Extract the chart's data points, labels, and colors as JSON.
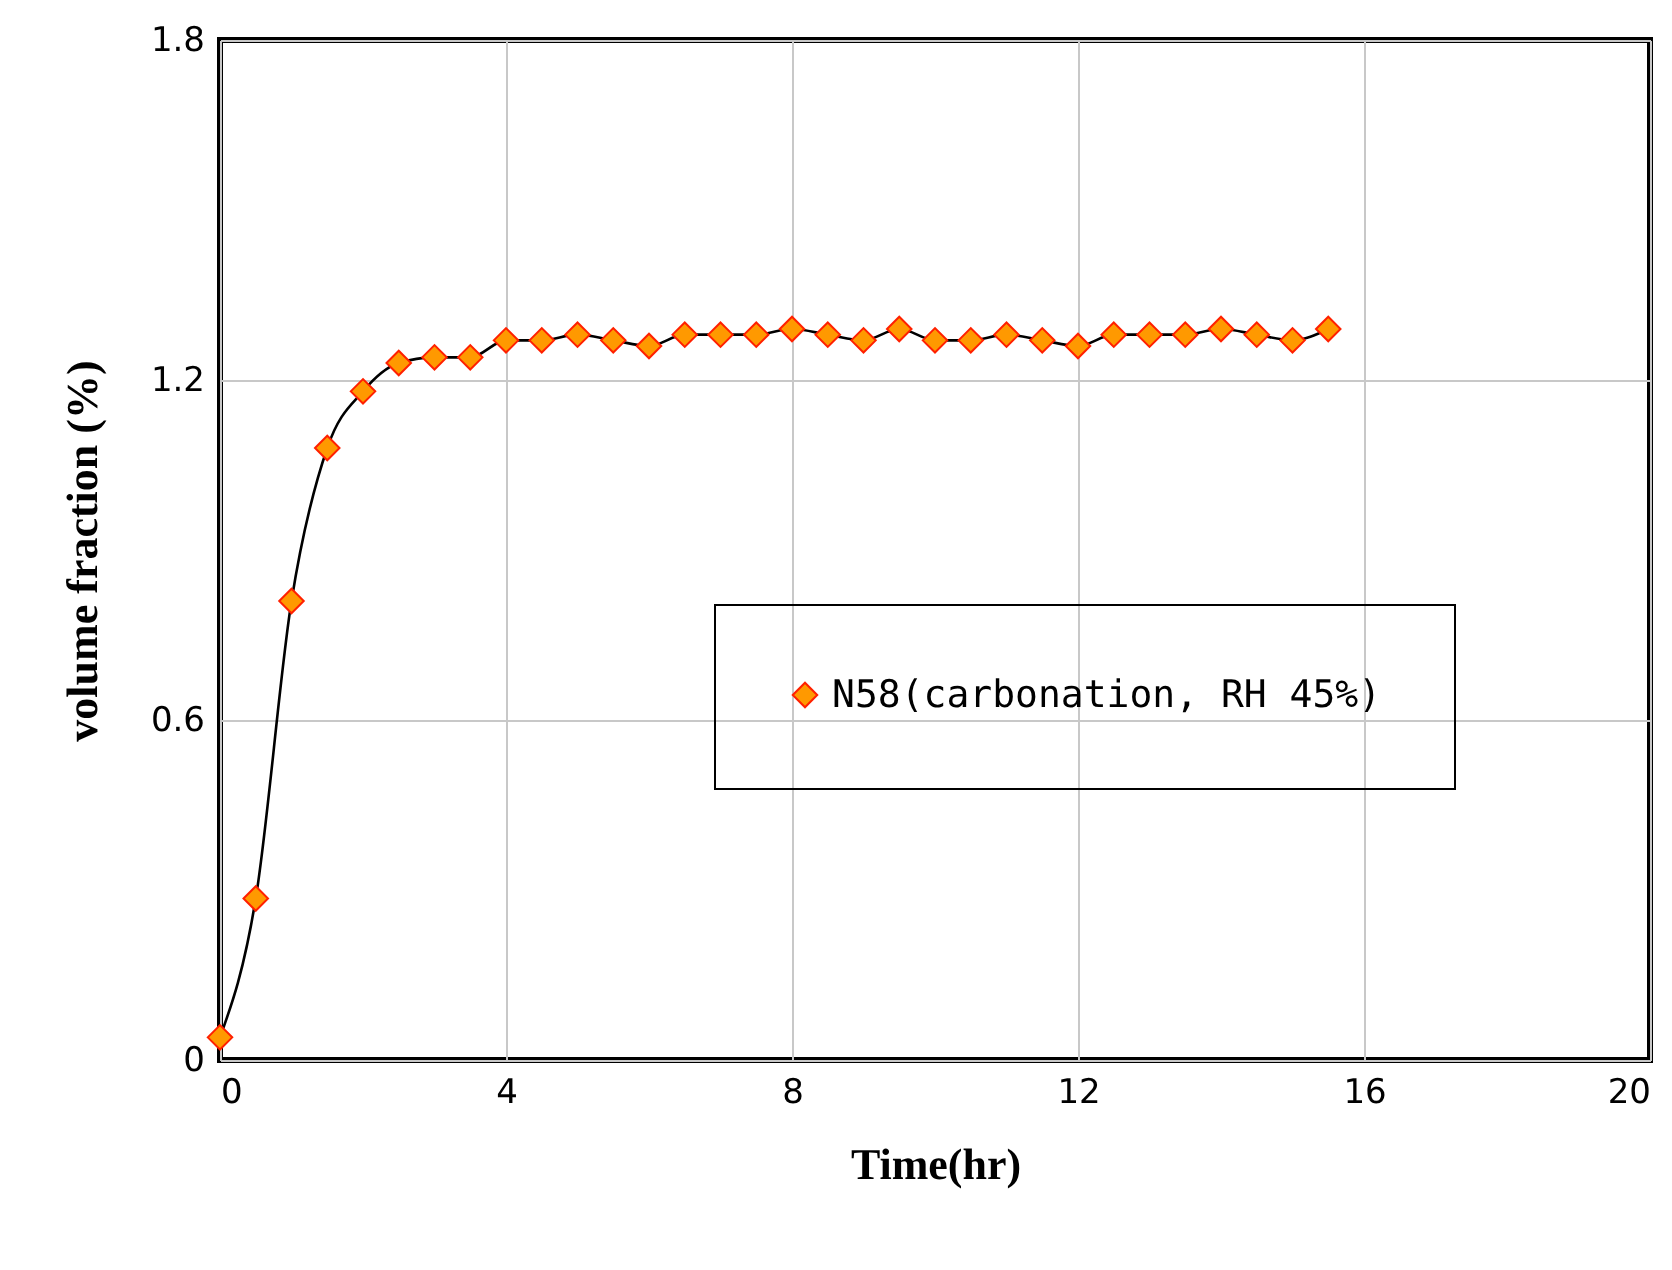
{
  "chart_data": {
    "type": "line",
    "xlabel": "Time(hr)",
    "ylabel": "volume fraction   (%)",
    "x": [
      0,
      0.5,
      1,
      1.5,
      2,
      2.5,
      3,
      3.5,
      4,
      4.5,
      5,
      5.5,
      6,
      6.5,
      7,
      7.5,
      8,
      8.5,
      9,
      9.5,
      10,
      10.5,
      11,
      11.5,
      12,
      12.5,
      13,
      13.5,
      14,
      14.5,
      15,
      15.5
    ],
    "series": [
      {
        "name": "N58(carbonation, RH 45%)",
        "color": "#ff9900",
        "values": [
          0.04,
          0.285,
          0.81,
          1.08,
          1.18,
          1.23,
          1.24,
          1.24,
          1.27,
          1.27,
          1.28,
          1.27,
          1.26,
          1.28,
          1.28,
          1.28,
          1.29,
          1.28,
          1.27,
          1.29,
          1.27,
          1.27,
          1.28,
          1.27,
          1.26,
          1.28,
          1.28,
          1.28,
          1.29,
          1.28,
          1.27,
          1.29
        ]
      }
    ],
    "xlim": [
      0,
      20
    ],
    "xticks": [
      0,
      4,
      8,
      12,
      16,
      20
    ],
    "ylim": [
      0,
      1.8
    ],
    "yticks": [
      0,
      0.6,
      1.2,
      1.8
    ],
    "grid": true,
    "legend": "right",
    "marker": "diamond",
    "line_style": "solid"
  }
}
